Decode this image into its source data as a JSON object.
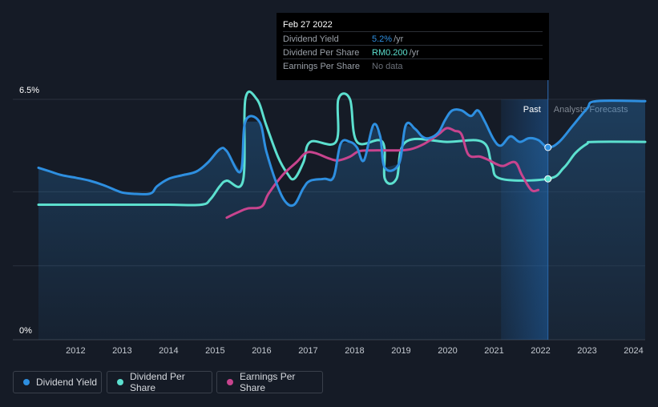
{
  "tooltip": {
    "date": "Feb 27 2022",
    "rows": [
      {
        "label": "Dividend Yield",
        "value": "5.2%",
        "unit": "/yr",
        "color": "#2e8fe0"
      },
      {
        "label": "Dividend Per Share",
        "value": "RM0.200",
        "unit": "/yr",
        "color": "#5ce0cf"
      },
      {
        "label": "Earnings Per Share",
        "value": "No data",
        "unit": "",
        "color": "#6b7079"
      }
    ]
  },
  "regions": {
    "past": "Past",
    "forecast": "Analysts Forecasts"
  },
  "legend": [
    {
      "label": "Dividend Yield",
      "color": "#2e8fe0"
    },
    {
      "label": "Dividend Per Share",
      "color": "#5ce0cf"
    },
    {
      "label": "Earnings Per Share",
      "color": "#c8448e"
    }
  ],
  "chart_data": {
    "type": "line",
    "ylim": [
      0,
      6.5
    ],
    "y_tick_labels": [
      "6.5%",
      "0%"
    ],
    "x_tick_labels": [
      "2012",
      "2013",
      "2014",
      "2015",
      "2016",
      "2017",
      "2018",
      "2019",
      "2020",
      "2021",
      "2022",
      "2023",
      "2024"
    ],
    "xlim": [
      2011.2,
      2024.25
    ],
    "past_forecast_split": 2022.16,
    "highlight_start": 2021.15,
    "series": [
      {
        "name": "Dividend Yield",
        "color": "#2e8fe0",
        "unit": "%",
        "points": [
          [
            2011.2,
            4.65
          ],
          [
            2011.45,
            4.55
          ],
          [
            2011.7,
            4.45
          ],
          [
            2012.0,
            4.38
          ],
          [
            2012.3,
            4.3
          ],
          [
            2012.6,
            4.18
          ],
          [
            2012.85,
            4.05
          ],
          [
            2013.0,
            3.98
          ],
          [
            2013.2,
            3.95
          ],
          [
            2013.6,
            3.95
          ],
          [
            2013.75,
            4.15
          ],
          [
            2014.0,
            4.35
          ],
          [
            2014.3,
            4.45
          ],
          [
            2014.6,
            4.55
          ],
          [
            2014.85,
            4.8
          ],
          [
            2015.1,
            5.15
          ],
          [
            2015.25,
            5.1
          ],
          [
            2015.55,
            4.55
          ],
          [
            2015.65,
            5.9
          ],
          [
            2015.95,
            5.9
          ],
          [
            2016.1,
            5.1
          ],
          [
            2016.3,
            4.3
          ],
          [
            2016.5,
            3.75
          ],
          [
            2016.7,
            3.65
          ],
          [
            2016.9,
            4.1
          ],
          [
            2017.05,
            4.3
          ],
          [
            2017.35,
            4.35
          ],
          [
            2017.55,
            4.4
          ],
          [
            2017.7,
            5.3
          ],
          [
            2017.9,
            5.35
          ],
          [
            2018.05,
            5.2
          ],
          [
            2018.2,
            4.85
          ],
          [
            2018.4,
            5.8
          ],
          [
            2018.55,
            5.5
          ],
          [
            2018.65,
            4.65
          ],
          [
            2018.95,
            4.75
          ],
          [
            2019.1,
            5.8
          ],
          [
            2019.3,
            5.7
          ],
          [
            2019.45,
            5.5
          ],
          [
            2019.6,
            5.45
          ],
          [
            2019.8,
            5.6
          ],
          [
            2019.95,
            5.95
          ],
          [
            2020.1,
            6.2
          ],
          [
            2020.3,
            6.2
          ],
          [
            2020.5,
            6.05
          ],
          [
            2020.65,
            6.2
          ],
          [
            2020.8,
            5.9
          ],
          [
            2021.0,
            5.4
          ],
          [
            2021.15,
            5.25
          ],
          [
            2021.35,
            5.5
          ],
          [
            2021.55,
            5.35
          ],
          [
            2021.75,
            5.45
          ],
          [
            2021.95,
            5.4
          ],
          [
            2022.16,
            5.2
          ],
          [
            2022.4,
            5.35
          ],
          [
            2022.7,
            5.8
          ],
          [
            2023.0,
            6.25
          ],
          [
            2023.2,
            6.45
          ],
          [
            2024.25,
            6.45
          ]
        ]
      },
      {
        "name": "Dividend Per Share",
        "color": "#5ce0cf",
        "unit": "RM",
        "points": [
          [
            2011.2,
            3.65
          ],
          [
            2011.5,
            3.65
          ],
          [
            2013.0,
            3.65
          ],
          [
            2014.0,
            3.65
          ],
          [
            2014.7,
            3.65
          ],
          [
            2014.9,
            3.8
          ],
          [
            2015.1,
            4.15
          ],
          [
            2015.25,
            4.3
          ],
          [
            2015.6,
            4.3
          ],
          [
            2015.65,
            6.5
          ],
          [
            2015.9,
            6.5
          ],
          [
            2016.1,
            5.8
          ],
          [
            2016.35,
            4.95
          ],
          [
            2016.55,
            4.5
          ],
          [
            2016.7,
            4.35
          ],
          [
            2016.9,
            4.8
          ],
          [
            2017.05,
            5.35
          ],
          [
            2017.6,
            5.35
          ],
          [
            2017.65,
            6.5
          ],
          [
            2017.9,
            6.5
          ],
          [
            2018.05,
            5.35
          ],
          [
            2018.6,
            5.35
          ],
          [
            2018.65,
            4.35
          ],
          [
            2018.9,
            4.35
          ],
          [
            2019.1,
            5.35
          ],
          [
            2020.0,
            5.35
          ],
          [
            2020.75,
            5.35
          ],
          [
            2020.95,
            4.75
          ],
          [
            2021.15,
            4.35
          ],
          [
            2022.16,
            4.35
          ],
          [
            2022.5,
            4.65
          ],
          [
            2022.75,
            5.05
          ],
          [
            2023.0,
            5.3
          ],
          [
            2023.15,
            5.35
          ],
          [
            2024.25,
            5.35
          ]
        ]
      },
      {
        "name": "Earnings Per Share",
        "color": "#c8448e",
        "unit": "RM",
        "points": [
          [
            2015.25,
            3.3
          ],
          [
            2015.5,
            3.45
          ],
          [
            2015.7,
            3.55
          ],
          [
            2016.0,
            3.6
          ],
          [
            2016.15,
            3.95
          ],
          [
            2016.45,
            4.45
          ],
          [
            2016.75,
            4.8
          ],
          [
            2016.95,
            5.05
          ],
          [
            2017.15,
            5.05
          ],
          [
            2017.45,
            4.9
          ],
          [
            2017.65,
            4.85
          ],
          [
            2017.9,
            4.95
          ],
          [
            2018.1,
            5.1
          ],
          [
            2018.4,
            5.12
          ],
          [
            2018.9,
            5.12
          ],
          [
            2019.2,
            5.15
          ],
          [
            2019.5,
            5.3
          ],
          [
            2019.8,
            5.55
          ],
          [
            2019.98,
            5.72
          ],
          [
            2020.15,
            5.65
          ],
          [
            2020.3,
            5.55
          ],
          [
            2020.45,
            5.0
          ],
          [
            2020.7,
            4.95
          ],
          [
            2020.9,
            4.85
          ],
          [
            2021.05,
            4.75
          ],
          [
            2021.2,
            4.7
          ],
          [
            2021.45,
            4.8
          ],
          [
            2021.6,
            4.45
          ],
          [
            2021.8,
            4.05
          ],
          [
            2021.95,
            4.05
          ]
        ]
      }
    ],
    "markers": [
      {
        "series": "Dividend Yield",
        "x": 2022.16,
        "y": 5.2
      },
      {
        "series": "Dividend Per Share",
        "x": 2022.16,
        "y": 4.35
      }
    ]
  }
}
